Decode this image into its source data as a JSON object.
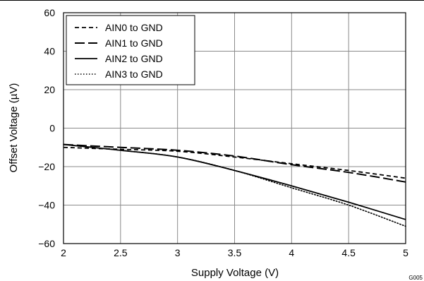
{
  "chart_data": {
    "type": "line",
    "title": "",
    "xlabel": "Supply Voltage (V)",
    "ylabel": "Offset Voltage (µV)",
    "xlim": [
      2,
      5
    ],
    "ylim": [
      -60,
      60
    ],
    "xticks": [
      2,
      2.5,
      3,
      3.5,
      4,
      4.5,
      5
    ],
    "yticks": [
      -60,
      -40,
      -20,
      0,
      20,
      40,
      60
    ],
    "xtick_labels": [
      "2",
      "2.5",
      "3",
      "3.5",
      "4",
      "4.5",
      "5"
    ],
    "ytick_labels": [
      "−60",
      "−40",
      "−20",
      "0",
      "20",
      "40",
      "60"
    ],
    "grid": true,
    "legend_position": "top-left",
    "figure_id": "G005",
    "x": [
      2,
      2.5,
      3,
      3.5,
      4,
      4.5,
      5
    ],
    "series": [
      {
        "name": "AIN0 to GND",
        "dash": "short-dash",
        "values": [
          -10,
          -11,
          -12,
          -15,
          -18.5,
          -22,
          -26
        ]
      },
      {
        "name": "AIN1 to GND",
        "dash": "long-dash",
        "values": [
          -8.5,
          -10,
          -11.5,
          -14.5,
          -19,
          -23,
          -28
        ]
      },
      {
        "name": "AIN2 to GND",
        "dash": "solid",
        "values": [
          -8.5,
          -11.5,
          -15,
          -22,
          -30,
          -38.5,
          -47.5
        ]
      },
      {
        "name": "AIN3 to GND",
        "dash": "dotted",
        "values": [
          -8.5,
          -11.5,
          -15,
          -22,
          -31,
          -40,
          -51
        ]
      }
    ]
  }
}
